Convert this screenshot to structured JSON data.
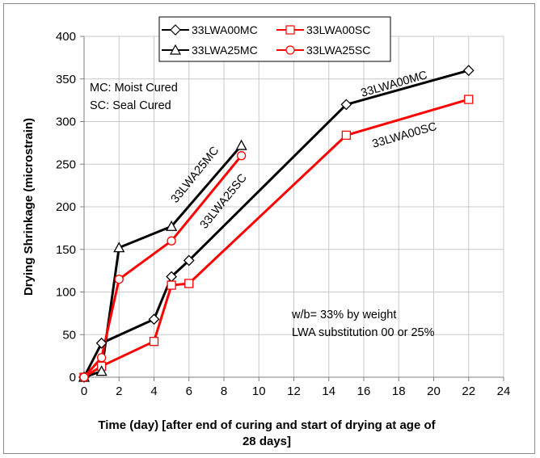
{
  "chart_data": {
    "type": "line",
    "xlabel_line1": "Time (day) [after end of curing and start of drying at age of",
    "xlabel_line2": "28 days]",
    "ylabel": "Drying Shrinkage (microstrain)",
    "xlim": [
      0,
      24
    ],
    "ylim": [
      0,
      400
    ],
    "xticks": [
      0,
      2,
      4,
      6,
      8,
      10,
      12,
      14,
      16,
      18,
      20,
      22,
      24
    ],
    "yticks": [
      0,
      50,
      100,
      150,
      200,
      250,
      300,
      350,
      400
    ],
    "grid": true,
    "legend_position": "top",
    "series": [
      {
        "name": "33LWA00MC",
        "color": "#000000",
        "marker": "diamond",
        "x": [
          0,
          1,
          4,
          5,
          6,
          15,
          22
        ],
        "y": [
          0,
          40,
          68,
          118,
          137,
          320,
          360
        ]
      },
      {
        "name": "33LWA00SC",
        "color": "#ff0000",
        "marker": "square",
        "x": [
          0,
          1,
          4,
          5,
          6,
          15,
          22
        ],
        "y": [
          0,
          13,
          42,
          108,
          110,
          284,
          326
        ]
      },
      {
        "name": "33LWA25MC",
        "color": "#000000",
        "marker": "triangle",
        "x": [
          0,
          1,
          2,
          5,
          9
        ],
        "y": [
          0,
          7,
          152,
          177,
          272
        ]
      },
      {
        "name": "33LWA25SC",
        "color": "#ff0000",
        "marker": "circle",
        "x": [
          0,
          1,
          2,
          5,
          9
        ],
        "y": [
          0,
          23,
          115,
          160,
          260
        ]
      }
    ],
    "annotations": {
      "curing_line1": "MC: Moist Cured",
      "curing_line2": "SC: Seal Cured",
      "mix_line1": "w/b= 33% by weight",
      "mix_line2": "LWA substitution 00 or 25%"
    },
    "inline_labels": [
      "33LWA00MC",
      "33LWA00SC",
      "33LWA25MC",
      "33LWA25SC"
    ]
  }
}
